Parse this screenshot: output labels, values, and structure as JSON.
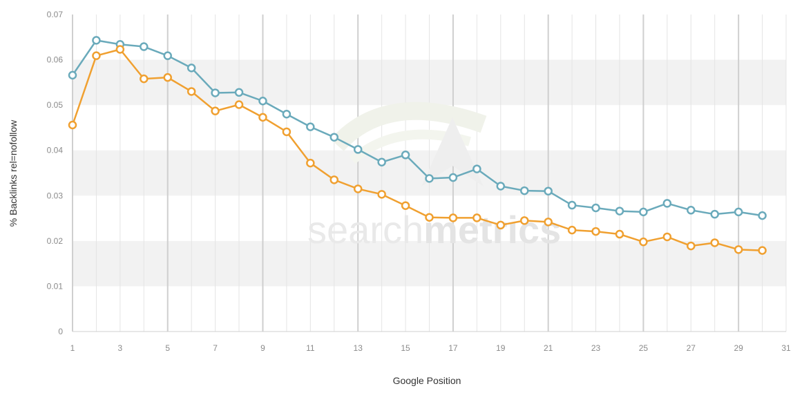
{
  "chart_data": {
    "type": "line",
    "xlabel": "Google Position",
    "ylabel": "% Backlinks rel=nofollow",
    "xlim": [
      1,
      31
    ],
    "ylim": [
      0,
      0.07
    ],
    "x_ticks": [
      "1",
      "3",
      "5",
      "7",
      "9",
      "11",
      "13",
      "15",
      "17",
      "19",
      "21",
      "23",
      "25",
      "27",
      "29",
      "31"
    ],
    "y_ticks": [
      "0",
      "0.01",
      "0.02",
      "0.03",
      "0.04",
      "0.05",
      "0.06",
      "0.07"
    ],
    "grid": "horizontal bands and vertical lines",
    "legend": "none",
    "x": [
      1,
      2,
      3,
      4,
      5,
      6,
      7,
      8,
      9,
      10,
      11,
      12,
      13,
      14,
      15,
      16,
      17,
      18,
      19,
      20,
      21,
      22,
      23,
      24,
      25,
      26,
      27,
      28,
      29,
      30
    ],
    "series": [
      {
        "color": "#6aaabb",
        "values": [
          0.0566,
          0.0643,
          0.0634,
          0.0629,
          0.0609,
          0.0582,
          0.0527,
          0.0528,
          0.0509,
          0.048,
          0.0452,
          0.0429,
          0.0402,
          0.0374,
          0.039,
          0.0338,
          0.034,
          0.0359,
          0.0321,
          0.0311,
          0.031,
          0.0279,
          0.0273,
          0.0266,
          0.0264,
          0.0283,
          0.0268,
          0.0259,
          0.0264,
          0.0256
        ]
      },
      {
        "color": "#f0a030",
        "values": [
          0.0456,
          0.0609,
          0.0623,
          0.0558,
          0.0561,
          0.053,
          0.0487,
          0.0501,
          0.0473,
          0.0441,
          0.0372,
          0.0335,
          0.0315,
          0.0303,
          0.0278,
          0.0252,
          0.0251,
          0.0251,
          0.0235,
          0.0245,
          0.0242,
          0.0224,
          0.0221,
          0.0215,
          0.0198,
          0.0209,
          0.0189,
          0.0196,
          0.0181,
          0.0179
        ]
      }
    ]
  },
  "watermark": {
    "light": "search",
    "bold": "metrics"
  }
}
